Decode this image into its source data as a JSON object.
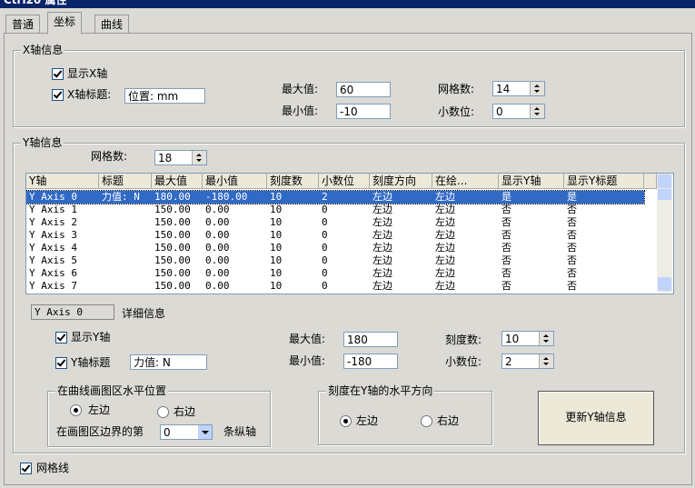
{
  "window": {
    "title": "Ctrl20 属性"
  },
  "tabs": [
    "普通",
    "坐标",
    "曲线"
  ],
  "active_tab": 1,
  "x_axis": {
    "group": "X轴信息",
    "show_label": "显示X轴",
    "show_checked": true,
    "title_label": "X轴标题:",
    "title_checked": true,
    "title_value": "位置: mm",
    "max_label": "最大值:",
    "max": 60,
    "min_label": "最小值:",
    "min": -10,
    "grid_label": "网格数:",
    "grid": 14,
    "decimals_label": "小数位:",
    "decimals": 0
  },
  "y_axis": {
    "group": "Y轴信息",
    "grid_label": "网格数:",
    "grid": 18,
    "table": {
      "headers": [
        "Y轴",
        "标题",
        "最大值",
        "最小值",
        "刻度数",
        "小数位",
        "刻度方向",
        "在绘...",
        "显示Y轴",
        "显示Y标题"
      ],
      "selected_row": 0,
      "rows": [
        [
          "Y Axis 0",
          "力值: N",
          "180.00",
          "-180.00",
          "10",
          "2",
          "左边",
          "左边",
          "是",
          "是"
        ],
        [
          "Y Axis 1",
          null,
          "150.00",
          "0.00",
          "10",
          "0",
          "左边",
          "左边",
          "否",
          "否"
        ],
        [
          "Y Axis 2",
          null,
          "150.00",
          "0.00",
          "10",
          "0",
          "左边",
          "左边",
          "否",
          "否"
        ],
        [
          "Y Axis 3",
          null,
          "150.00",
          "0.00",
          "10",
          "0",
          "左边",
          "左边",
          "否",
          "否"
        ],
        [
          "Y Axis 4",
          null,
          "150.00",
          "0.00",
          "10",
          "0",
          "左边",
          "左边",
          "否",
          "否"
        ],
        [
          "Y Axis 5",
          null,
          "150.00",
          "0.00",
          "10",
          "0",
          "左边",
          "左边",
          "否",
          "否"
        ],
        [
          "Y Axis 6",
          null,
          "150.00",
          "0.00",
          "10",
          "0",
          "左边",
          "左边",
          "否",
          "否"
        ],
        [
          "Y Axis 7",
          null,
          "150.00",
          "0.00",
          "10",
          "0",
          "左边",
          "左边",
          "否",
          "否"
        ]
      ]
    },
    "detail": {
      "axis_name": "Y Axis 0",
      "detail_label": "详细信息",
      "show_label": "显示Y轴",
      "show_checked": true,
      "title_label": "Y轴标题",
      "title_checked": true,
      "title_value": "力值: N",
      "max_label": "最大值:",
      "max": 180,
      "min_label": "最小值:",
      "min": -180,
      "ticks_label": "刻度数:",
      "ticks": 10,
      "decimals_label": "小数位:",
      "decimals": 2
    },
    "position_group": {
      "title": "在曲线画图区水平位置",
      "left": "左边",
      "right": "右边",
      "selected": "left",
      "edge_label": "在画图区边界的第",
      "edge_value": 0,
      "edge_suffix": "条纵轴"
    },
    "direction_group": {
      "title": "刻度在Y轴的水平方向",
      "left": "左边",
      "right": "右边",
      "selected": "left"
    },
    "update_button": "更新Y轴信息"
  },
  "grid_line": {
    "label": "网格线",
    "checked": true
  }
}
